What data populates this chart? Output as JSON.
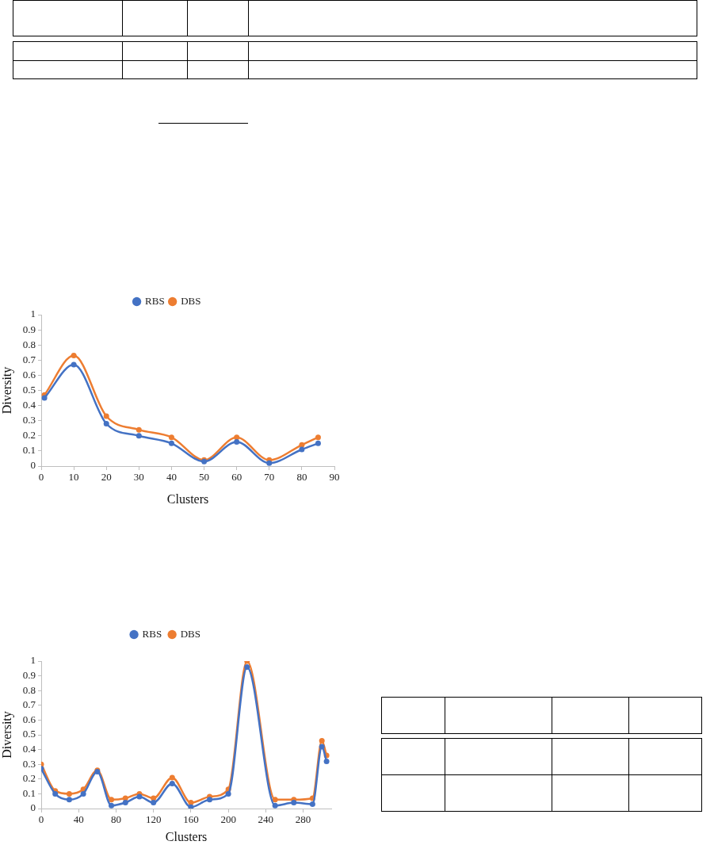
{
  "chart_data": [
    {
      "type": "line",
      "xlabel": "Clusters",
      "ylabel": "Diversity",
      "x": [
        1,
        10,
        20,
        30,
        40,
        50,
        60,
        70,
        80,
        85
      ],
      "series": [
        {
          "name": "RBS",
          "color": "#4472c4",
          "values": [
            0.45,
            0.67,
            0.28,
            0.2,
            0.15,
            0.03,
            0.16,
            0.02,
            0.11,
            0.15
          ]
        },
        {
          "name": "DBS",
          "color": "#ed7d31",
          "values": [
            0.47,
            0.73,
            0.33,
            0.24,
            0.19,
            0.04,
            0.19,
            0.04,
            0.14,
            0.19
          ]
        }
      ],
      "xlim": [
        0,
        90
      ],
      "xticks": [
        0,
        10,
        20,
        30,
        40,
        50,
        60,
        70,
        80,
        90
      ],
      "ylim": [
        0,
        1
      ],
      "yticks": [
        0,
        0.1,
        0.2,
        0.3,
        0.4,
        0.5,
        0.6,
        0.7,
        0.8,
        0.9,
        1
      ],
      "grid": false,
      "legend": "top",
      "marker": "circle",
      "line_style": "solid"
    },
    {
      "type": "line",
      "xlabel": "Clusters",
      "ylabel": "Diversity",
      "x": [
        0,
        15,
        30,
        45,
        60,
        75,
        90,
        105,
        120,
        140,
        160,
        180,
        200,
        220,
        250,
        270,
        290,
        300,
        305
      ],
      "series": [
        {
          "name": "RBS",
          "color": "#4472c4",
          "values": [
            0.27,
            0.1,
            0.06,
            0.1,
            0.25,
            0.02,
            0.04,
            0.08,
            0.04,
            0.17,
            0.01,
            0.06,
            0.1,
            0.96,
            0.02,
            0.04,
            0.03,
            0.42,
            0.32
          ]
        },
        {
          "name": "DBS",
          "color": "#ed7d31",
          "values": [
            0.3,
            0.12,
            0.1,
            0.13,
            0.26,
            0.06,
            0.07,
            0.1,
            0.07,
            0.21,
            0.04,
            0.08,
            0.13,
            1,
            0.06,
            0.06,
            0.07,
            0.46,
            0.36
          ]
        }
      ],
      "xlim": [
        0,
        310
      ],
      "xticks": [
        0,
        40,
        80,
        120,
        160,
        200,
        240,
        280
      ],
      "ylim": [
        0,
        1
      ],
      "yticks": [
        0,
        0.1,
        0.2,
        0.3,
        0.4,
        0.5,
        0.6,
        0.7,
        0.8,
        0.9,
        1
      ],
      "grid": false,
      "legend": "top",
      "marker": "circle",
      "line_style": "solid"
    }
  ]
}
